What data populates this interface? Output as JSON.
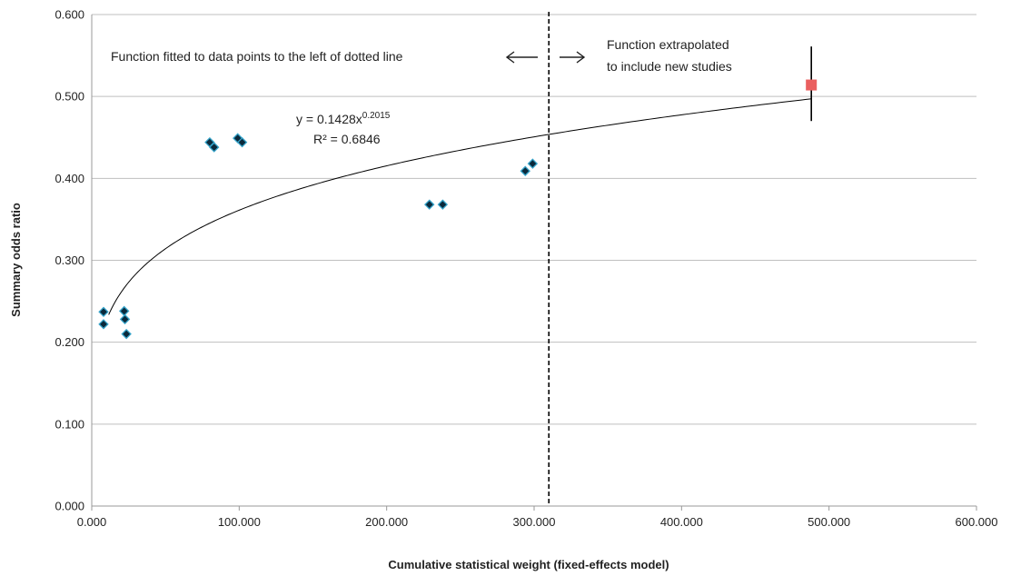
{
  "chart_data": {
    "type": "scatter",
    "xlabel": "Cumulative statistical weight (fixed-effects model)",
    "ylabel": "Summary odds ratio",
    "xlim": [
      0,
      600000
    ],
    "ylim": [
      0,
      0.6
    ],
    "x_ticks": [
      "0.000",
      "100.000",
      "200.000",
      "300.000",
      "400.000",
      "500.000",
      "600.000"
    ],
    "y_ticks": [
      "0.000",
      "0.100",
      "0.200",
      "0.300",
      "0.400",
      "0.500",
      "0.600"
    ],
    "grid": "horizontal",
    "series": [
      {
        "marker": "diamond",
        "color": "#0b2a3c",
        "edge_color": "#35a3c9",
        "points": [
          {
            "x": 8000,
            "y": 0.237
          },
          {
            "x": 8000,
            "y": 0.222
          },
          {
            "x": 22000,
            "y": 0.238
          },
          {
            "x": 22500,
            "y": 0.228
          },
          {
            "x": 23500,
            "y": 0.21
          },
          {
            "x": 80000,
            "y": 0.444
          },
          {
            "x": 83000,
            "y": 0.438
          },
          {
            "x": 99000,
            "y": 0.449
          },
          {
            "x": 102000,
            "y": 0.444
          },
          {
            "x": 229000,
            "y": 0.368
          },
          {
            "x": 238000,
            "y": 0.368
          },
          {
            "x": 294000,
            "y": 0.409
          },
          {
            "x": 299000,
            "y": 0.418
          }
        ]
      },
      {
        "marker": "square",
        "color": "#ea5f5f",
        "points": [
          {
            "x": 488000,
            "y": 0.514
          }
        ],
        "error_bar": {
          "low": 0.47,
          "high": 0.561
        }
      }
    ],
    "fit": {
      "equation": "y = 0.1428x",
      "exponent": "0.2015",
      "r2": "R² = 0.6846",
      "coefficient": 0.1428,
      "power": 0.2015,
      "x_unit_divisor": 1000,
      "x_range": [
        11500,
        488000
      ]
    },
    "divider_x": 310000,
    "annotations": {
      "left": "Function fitted to data points to the left of dotted line",
      "right_line1": "Function extrapolated",
      "right_line2": "to include new studies"
    },
    "colors": {
      "grid": "#bfbfbf",
      "axis": "#999999",
      "curve": "#000000",
      "divider": "#000000"
    }
  }
}
